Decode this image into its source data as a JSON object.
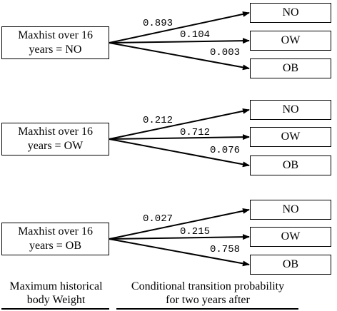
{
  "groups": [
    {
      "source": "Maxhist over 16\nyears = NO",
      "targets": [
        {
          "label": "NO",
          "prob": "0.893"
        },
        {
          "label": "OW",
          "prob": "0.104"
        },
        {
          "label": "OB",
          "prob": "0.003"
        }
      ]
    },
    {
      "source": "Maxhist over 16\nyears = OW",
      "targets": [
        {
          "label": "NO",
          "prob": "0.212"
        },
        {
          "label": "OW",
          "prob": "0.712"
        },
        {
          "label": "OB",
          "prob": "0.076"
        }
      ]
    },
    {
      "source": "Maxhist over 16\nyears = OB",
      "targets": [
        {
          "label": "NO",
          "prob": "0.027"
        },
        {
          "label": "OW",
          "prob": "0.215"
        },
        {
          "label": "OB",
          "prob": "0.758"
        }
      ]
    }
  ],
  "footer": {
    "left": "Maximum historical\nbody Weight",
    "right": "Conditional transition probability\nfor two years after"
  }
}
